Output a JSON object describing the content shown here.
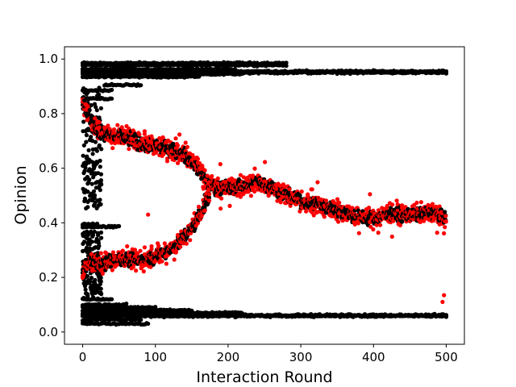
{
  "chart_data": {
    "type": "scatter",
    "title": "",
    "xlabel": "Interaction Round",
    "ylabel": "Opinion",
    "xlim": [
      -25,
      525
    ],
    "ylim": [
      -0.045,
      1.045
    ],
    "xticks": [
      0,
      100,
      200,
      300,
      400,
      500
    ],
    "xtick_labels": [
      "0",
      "100",
      "200",
      "300",
      "400",
      "500"
    ],
    "yticks": [
      0.0,
      0.2,
      0.4,
      0.6,
      0.8,
      1.0
    ],
    "ytick_labels": [
      "0.0",
      "0.2",
      "0.4",
      "0.6",
      "0.8",
      "1.0"
    ],
    "grid": false,
    "legend": "none",
    "series": [
      {
        "color": "#ff0000",
        "marker": "circle",
        "description_points": [
          [
            0,
            0.85
          ],
          [
            10,
            0.78
          ],
          [
            20,
            0.74
          ],
          [
            40,
            0.72
          ],
          [
            60,
            0.71
          ],
          [
            80,
            0.69
          ],
          [
            100,
            0.68
          ],
          [
            120,
            0.67
          ],
          [
            140,
            0.65
          ],
          [
            160,
            0.6
          ],
          [
            170,
            0.55
          ],
          [
            180,
            0.53
          ],
          [
            200,
            0.53
          ],
          [
            220,
            0.53
          ],
          [
            240,
            0.55
          ],
          [
            260,
            0.53
          ],
          [
            280,
            0.5
          ],
          [
            300,
            0.48
          ],
          [
            320,
            0.47
          ],
          [
            340,
            0.45
          ],
          [
            360,
            0.44
          ],
          [
            380,
            0.42
          ],
          [
            400,
            0.42
          ],
          [
            420,
            0.43
          ],
          [
            440,
            0.43
          ],
          [
            460,
            0.43
          ],
          [
            480,
            0.44
          ],
          [
            500,
            0.41
          ],
          [
            0,
            0.22
          ],
          [
            10,
            0.26
          ],
          [
            30,
            0.25
          ],
          [
            50,
            0.27
          ],
          [
            70,
            0.26
          ],
          [
            90,
            0.27
          ],
          [
            110,
            0.29
          ],
          [
            130,
            0.32
          ],
          [
            150,
            0.38
          ],
          [
            165,
            0.45
          ],
          [
            175,
            0.51
          ]
        ]
      },
      {
        "color": "#000000",
        "marker": "circle",
        "description_points": [
          [
            0,
            0.99
          ],
          [
            280,
            0.98
          ],
          [
            0,
            0.97
          ],
          [
            200,
            0.96
          ],
          [
            300,
            0.955
          ],
          [
            500,
            0.952
          ],
          [
            0,
            0.94
          ],
          [
            150,
            0.93
          ],
          [
            40,
            0.905
          ],
          [
            80,
            0.905
          ],
          [
            20,
            0.86
          ],
          [
            0,
            0.02
          ],
          [
            500,
            0.06
          ],
          [
            0,
            0.06
          ],
          [
            200,
            0.06
          ],
          [
            0,
            0.1
          ],
          [
            60,
            0.05
          ],
          [
            0,
            0.39
          ],
          [
            50,
            0.385
          ]
        ]
      }
    ]
  }
}
